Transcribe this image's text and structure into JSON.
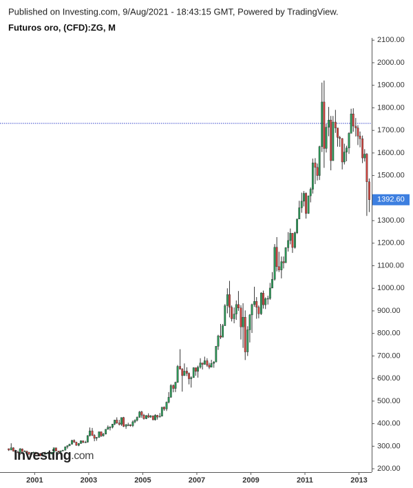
{
  "header": {
    "published": "Published on Investing.com, 9/Aug/2021 - 18:43:15 GMT, Powered by TradingView."
  },
  "logo": {
    "name": "Investing",
    "suffix": ".com"
  },
  "chart_data": {
    "type": "candlestick",
    "title": "Futuros oro, (CFD):ZG, M",
    "up_color": "#2b9a58",
    "down_color": "#d3453f",
    "wick_color": "#333333",
    "reference_line": 1731,
    "reference_color": "#2f3fc8",
    "last_close_label": "1392.60",
    "last_close_color": "#3d7fe0",
    "xlim": [
      1999.92,
      2013.42
    ],
    "xticks": [
      2001,
      2003,
      2005,
      2007,
      2009,
      2011,
      2013
    ],
    "ylim": [
      185,
      2110
    ],
    "yticks": [
      {
        "value": 200,
        "label": "200.00"
      },
      {
        "value": 300,
        "label": "300.00"
      },
      {
        "value": 400,
        "label": "400.00"
      },
      {
        "value": 500,
        "label": "500.00"
      },
      {
        "value": 600,
        "label": "600.00"
      },
      {
        "value": 700,
        "label": "700.00"
      },
      {
        "value": 800,
        "label": "800.00"
      },
      {
        "value": 900,
        "label": "900.00"
      },
      {
        "value": 1000,
        "label": "1000.00"
      },
      {
        "value": 1100,
        "label": "1100.00"
      },
      {
        "value": 1200,
        "label": "1200.00"
      },
      {
        "value": 1300,
        "label": "1300.00"
      },
      {
        "value": 1400,
        "label": "1400.00"
      },
      {
        "value": 1500,
        "label": "1500.00"
      },
      {
        "value": 1600,
        "label": "1600.00"
      },
      {
        "value": 1700,
        "label": "1700.00"
      },
      {
        "value": 1800,
        "label": "1800.00"
      },
      {
        "value": 1900,
        "label": "1900.00"
      },
      {
        "value": 2000,
        "label": "2000.00"
      },
      {
        "value": 2100,
        "label": "2100.00"
      }
    ],
    "x": [
      2000.04,
      2000.13,
      2000.21,
      2000.29,
      2000.38,
      2000.46,
      2000.54,
      2000.63,
      2000.71,
      2000.79,
      2000.88,
      2000.96,
      2001.04,
      2001.13,
      2001.21,
      2001.29,
      2001.38,
      2001.46,
      2001.54,
      2001.63,
      2001.71,
      2001.79,
      2001.88,
      2001.96,
      2002.04,
      2002.13,
      2002.21,
      2002.29,
      2002.38,
      2002.46,
      2002.54,
      2002.63,
      2002.71,
      2002.79,
      2002.88,
      2002.96,
      2003.04,
      2003.13,
      2003.21,
      2003.29,
      2003.38,
      2003.46,
      2003.54,
      2003.63,
      2003.71,
      2003.79,
      2003.88,
      2003.96,
      2004.04,
      2004.13,
      2004.21,
      2004.29,
      2004.38,
      2004.46,
      2004.54,
      2004.63,
      2004.71,
      2004.79,
      2004.88,
      2004.96,
      2005.04,
      2005.13,
      2005.21,
      2005.29,
      2005.38,
      2005.46,
      2005.54,
      2005.63,
      2005.71,
      2005.79,
      2005.88,
      2005.96,
      2006.04,
      2006.13,
      2006.21,
      2006.29,
      2006.38,
      2006.46,
      2006.54,
      2006.63,
      2006.71,
      2006.79,
      2006.88,
      2006.96,
      2007.04,
      2007.13,
      2007.21,
      2007.29,
      2007.38,
      2007.46,
      2007.54,
      2007.63,
      2007.71,
      2007.79,
      2007.88,
      2007.96,
      2008.04,
      2008.13,
      2008.21,
      2008.29,
      2008.38,
      2008.46,
      2008.54,
      2008.63,
      2008.71,
      2008.79,
      2008.88,
      2008.96,
      2009.04,
      2009.13,
      2009.21,
      2009.29,
      2009.38,
      2009.46,
      2009.54,
      2009.63,
      2009.71,
      2009.79,
      2009.88,
      2009.96,
      2010.04,
      2010.13,
      2010.21,
      2010.29,
      2010.38,
      2010.46,
      2010.54,
      2010.63,
      2010.71,
      2010.79,
      2010.88,
      2010.96,
      2011.04,
      2011.13,
      2011.21,
      2011.29,
      2011.38,
      2011.46,
      2011.54,
      2011.63,
      2011.71,
      2011.79,
      2011.88,
      2011.96,
      2012.04,
      2012.13,
      2012.21,
      2012.29,
      2012.38,
      2012.46,
      2012.54,
      2012.63,
      2012.71,
      2012.79,
      2012.88,
      2012.96,
      2013.04,
      2013.13,
      2013.21,
      2013.29,
      2013.38
    ],
    "open": [
      289,
      283,
      293,
      278,
      274,
      272,
      288,
      276,
      278,
      273,
      264,
      270,
      273,
      265,
      267,
      258,
      264,
      267,
      270,
      265,
      273,
      293,
      279,
      275,
      279,
      282,
      297,
      302,
      309,
      326,
      318,
      304,
      312,
      324,
      317,
      318,
      347,
      368,
      348,
      335,
      339,
      364,
      346,
      354,
      375,
      384,
      384,
      398,
      416,
      403,
      397,
      427,
      388,
      395,
      395,
      391,
      408,
      415,
      428,
      452,
      438,
      422,
      436,
      429,
      435,
      417,
      437,
      429,
      433,
      473,
      465,
      495,
      517,
      569,
      556,
      583,
      654,
      642,
      613,
      633,
      623,
      599,
      604,
      648,
      632,
      650,
      669,
      663,
      679,
      659,
      650,
      667,
      673,
      743,
      789,
      783,
      834,
      923,
      972,
      916,
      865,
      886,
      928,
      913,
      829,
      872,
      718,
      816,
      882,
      928,
      942,
      916,
      887,
      979,
      927,
      954,
      955,
      1001,
      1040,
      1182,
      1096,
      1081,
      1118,
      1113,
      1180,
      1212,
      1244,
      1181,
      1246,
      1307,
      1357,
      1386,
      1421,
      1332,
      1410,
      1439,
      1556,
      1536,
      1500,
      1628,
      1826,
      1620,
      1714,
      1746,
      1566,
      1737,
      1711,
      1669,
      1664,
      1560,
      1604,
      1622,
      1687,
      1773,
      1719,
      1711,
      1675,
      1663,
      1578,
      1595,
      1472
    ],
    "high": [
      290,
      313,
      295,
      284,
      280,
      292,
      290,
      282,
      280,
      275,
      272,
      276,
      275,
      268,
      270,
      266,
      275,
      272,
      271,
      275,
      294,
      293,
      279,
      281,
      284,
      299,
      304,
      311,
      328,
      330,
      320,
      314,
      326,
      325,
      324,
      349,
      383,
      381,
      353,
      341,
      365,
      365,
      359,
      376,
      392,
      389,
      399,
      417,
      428,
      417,
      428,
      430,
      399,
      404,
      397,
      414,
      419,
      432,
      456,
      457,
      443,
      438,
      446,
      438,
      436,
      442,
      439,
      447,
      474,
      476,
      498,
      540,
      575,
      574,
      586,
      660,
      730,
      646,
      667,
      650,
      627,
      610,
      650,
      648,
      657,
      690,
      670,
      697,
      690,
      670,
      683,
      677,
      744,
      794,
      842,
      842,
      930,
      1000,
      1033,
      924,
      915,
      946,
      988,
      925,
      934,
      902,
      832,
      886,
      932,
      1007,
      961,
      924,
      983,
      990,
      960,
      967,
      1024,
      1072,
      1196,
      1227,
      1162,
      1141,
      1141,
      1182,
      1249,
      1265,
      1245,
      1251,
      1308,
      1388,
      1424,
      1431,
      1425,
      1411,
      1447,
      1575,
      1577,
      1553,
      1632,
      1912,
      1921,
      1729,
      1804,
      1764,
      1764,
      1791,
      1710,
      1676,
      1666,
      1641,
      1632,
      1692,
      1796,
      1798,
      1755,
      1723,
      1695,
      1677,
      1617,
      1599,
      1487
    ],
    "low": [
      279,
      282,
      276,
      271,
      270,
      271,
      275,
      274,
      270,
      263,
      263,
      268,
      264,
      262,
      256,
      256,
      263,
      265,
      264,
      264,
      271,
      277,
      271,
      273,
      277,
      281,
      289,
      300,
      307,
      315,
      302,
      300,
      311,
      313,
      315,
      316,
      343,
      345,
      322,
      324,
      337,
      341,
      343,
      352,
      373,
      370,
      379,
      393,
      399,
      392,
      390,
      385,
      377,
      389,
      387,
      385,
      402,
      410,
      426,
      426,
      418,
      420,
      425,
      426,
      415,
      414,
      418,
      429,
      432,
      457,
      456,
      490,
      515,
      539,
      540,
      581,
      640,
      542,
      612,
      611,
      574,
      560,
      603,
      612,
      604,
      644,
      640,
      661,
      652,
      642,
      650,
      648,
      673,
      727,
      775,
      783,
      834,
      889,
      871,
      853,
      845,
      860,
      900,
      773,
      736,
      682,
      700,
      760,
      802,
      918,
      865,
      867,
      882,
      910,
      908,
      928,
      949,
      1001,
      1034,
      1075,
      1072,
      1044,
      1088,
      1113,
      1163,
      1195,
      1157,
      1176,
      1241,
      1314,
      1335,
      1363,
      1309,
      1330,
      1381,
      1420,
      1462,
      1478,
      1480,
      1604,
      1534,
      1602,
      1674,
      1523,
      1565,
      1689,
      1628,
      1627,
      1527,
      1549,
      1563,
      1596,
      1687,
      1694,
      1673,
      1635,
      1625,
      1555,
      1562,
      1321,
      1338
    ],
    "close": [
      283,
      293,
      278,
      274,
      272,
      288,
      276,
      278,
      273,
      264,
      270,
      273,
      265,
      267,
      258,
      264,
      267,
      270,
      265,
      273,
      293,
      279,
      275,
      279,
      282,
      297,
      302,
      309,
      326,
      318,
      304,
      312,
      324,
      317,
      318,
      347,
      368,
      348,
      335,
      339,
      364,
      346,
      354,
      375,
      384,
      384,
      398,
      416,
      403,
      397,
      427,
      388,
      395,
      395,
      391,
      408,
      415,
      428,
      452,
      438,
      422,
      436,
      429,
      435,
      417,
      437,
      429,
      433,
      473,
      465,
      495,
      517,
      569,
      556,
      583,
      654,
      642,
      613,
      633,
      623,
      599,
      604,
      648,
      632,
      650,
      669,
      663,
      679,
      659,
      650,
      667,
      673,
      743,
      789,
      783,
      834,
      923,
      972,
      916,
      865,
      886,
      928,
      913,
      829,
      872,
      718,
      816,
      882,
      928,
      942,
      916,
      887,
      979,
      927,
      954,
      955,
      1001,
      1040,
      1182,
      1096,
      1081,
      1118,
      1113,
      1180,
      1212,
      1244,
      1181,
      1246,
      1307,
      1357,
      1386,
      1421,
      1332,
      1410,
      1439,
      1556,
      1536,
      1500,
      1628,
      1826,
      1620,
      1714,
      1746,
      1566,
      1737,
      1711,
      1669,
      1664,
      1560,
      1604,
      1622,
      1687,
      1773,
      1719,
      1711,
      1675,
      1663,
      1578,
      1595,
      1472,
      1392.6
    ]
  }
}
